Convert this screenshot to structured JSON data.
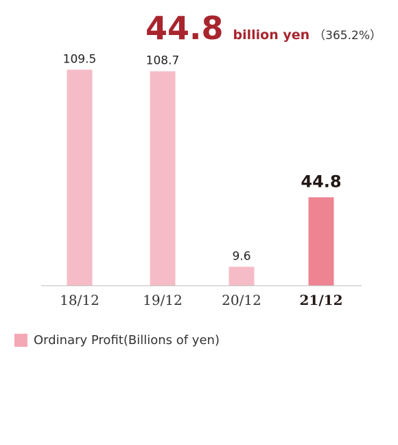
{
  "header": {
    "value": "44.8",
    "unit": "billion yen",
    "change": "（365.2%）"
  },
  "chart_data": {
    "type": "bar",
    "categories": [
      "18/12",
      "19/12",
      "20/12",
      "21/12"
    ],
    "values": [
      109.5,
      108.7,
      9.6,
      44.8
    ],
    "value_labels": [
      "109.5",
      "108.7",
      "9.6",
      "44.8"
    ],
    "highlight_index": 3,
    "ylim": [
      0,
      110
    ],
    "grid": false,
    "legend_position": "bottom-left",
    "series": [
      {
        "name": "Ordinary Profit(Billions of yen)",
        "values": [
          109.5,
          108.7,
          9.6,
          44.8
        ]
      }
    ]
  },
  "colors": {
    "bar": "#f5bcc7",
    "bar_highlight": "#ee8392",
    "legend_swatch": "#f4a7b5",
    "accent": "#a8252e",
    "axis": "#bbbbbb"
  },
  "legend": {
    "label": "Ordinary Profit(Billions of yen)"
  }
}
